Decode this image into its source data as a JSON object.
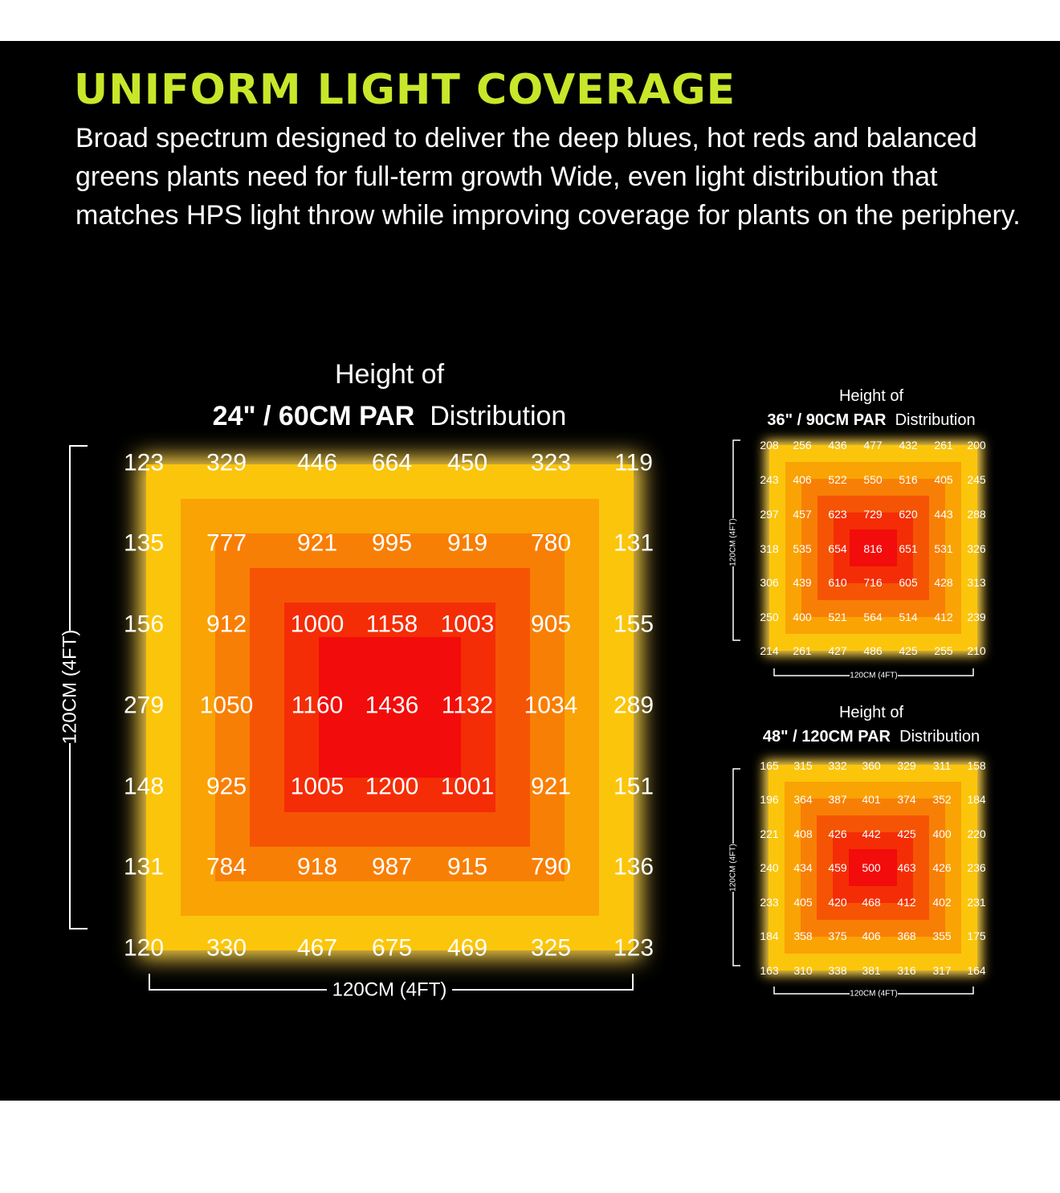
{
  "header": {
    "title": "UNIFORM LIGHT COVERAGE",
    "description": "Broad spectrum designed to deliver the deep blues, hot reds and balanced greens plants need for full-term growth Wide, even light distribution that matches HPS light throw while improving coverage for plants on the periphery."
  },
  "colors": {
    "background": "#000000",
    "title": "#c8e62a",
    "text": "#ffffff",
    "heat_levels": [
      "#fbc50b",
      "#f9a304",
      "#f87f05",
      "#f55405",
      "#f42d06",
      "#f20c0b"
    ],
    "glow": "#ffd54a"
  },
  "chart_data": [
    {
      "type": "heatmap",
      "id": "h24",
      "title_line1": "Height of",
      "title_bold": "24\" / 60CM PAR",
      "title_rest": "Distribution",
      "xlabel": "120CM (4FT)",
      "ylabel": "120CM (4FT)",
      "values": [
        [
          123,
          329,
          446,
          664,
          450,
          323,
          119
        ],
        [
          135,
          777,
          921,
          995,
          919,
          780,
          131
        ],
        [
          156,
          912,
          1000,
          1158,
          1003,
          905,
          155
        ],
        [
          279,
          1050,
          1160,
          1436,
          1132,
          1034,
          289
        ],
        [
          148,
          925,
          1005,
          1200,
          1001,
          921,
          151
        ],
        [
          131,
          784,
          918,
          987,
          915,
          790,
          136
        ],
        [
          120,
          330,
          467,
          675,
          469,
          325,
          123
        ]
      ]
    },
    {
      "type": "heatmap",
      "id": "h36",
      "title_line1": "Height of",
      "title_bold": "36\" / 90CM PAR",
      "title_rest": "Distribution",
      "xlabel": "120CM (4FT)",
      "ylabel": "120CM (4FT)",
      "values": [
        [
          208,
          256,
          436,
          477,
          432,
          261,
          200
        ],
        [
          243,
          406,
          522,
          550,
          516,
          405,
          245
        ],
        [
          297,
          457,
          623,
          729,
          620,
          443,
          288
        ],
        [
          318,
          535,
          654,
          816,
          651,
          531,
          326
        ],
        [
          306,
          439,
          610,
          716,
          605,
          428,
          313
        ],
        [
          250,
          400,
          521,
          564,
          514,
          412,
          239
        ],
        [
          214,
          261,
          427,
          486,
          425,
          255,
          210
        ]
      ]
    },
    {
      "type": "heatmap",
      "id": "h48",
      "title_line1": "Height of",
      "title_bold": "48\" / 120CM PAR",
      "title_rest": "Distribution",
      "xlabel": "120CM (4FT)",
      "ylabel": "120CM (4FT)",
      "values": [
        [
          165,
          315,
          332,
          360,
          329,
          311,
          158
        ],
        [
          196,
          364,
          387,
          401,
          374,
          352,
          184
        ],
        [
          221,
          408,
          426,
          442,
          425,
          400,
          220
        ],
        [
          240,
          434,
          459,
          500,
          463,
          426,
          236
        ],
        [
          233,
          405,
          420,
          468,
          412,
          402,
          231
        ],
        [
          184,
          358,
          375,
          406,
          368,
          355,
          175
        ],
        [
          163,
          310,
          338,
          381,
          316,
          317,
          164
        ]
      ]
    }
  ]
}
